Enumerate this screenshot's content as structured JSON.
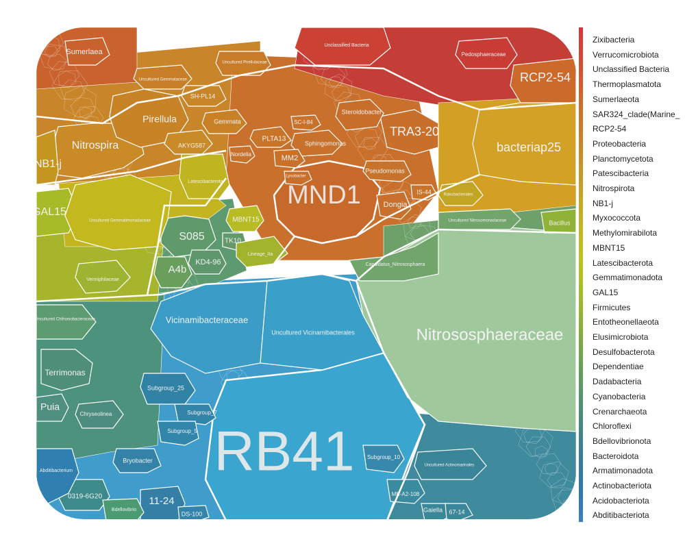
{
  "chart_data": {
    "type": "voronoi-treemap",
    "legend": {
      "placement": "right",
      "items": [
        {
          "name": "Zixibacteria",
          "color": "#d8353a"
        },
        {
          "name": "Verrucomicrobiota",
          "color": "#d63e36"
        },
        {
          "name": "Unclassified Bacteria",
          "color": "#d44a33"
        },
        {
          "name": "Thermoplasmatota",
          "color": "#d2552f"
        },
        {
          "name": "Sumerlaeota",
          "color": "#d0612c"
        },
        {
          "name": "SAR324_clade(Marine_",
          "color": "#ce6c2a"
        },
        {
          "name": "RCP2-54",
          "color": "#cc7628"
        },
        {
          "name": "Proteobacteria",
          "color": "#cb7f27"
        },
        {
          "name": "Planctomycetota",
          "color": "#ca8926"
        },
        {
          "name": "Patescibacteria",
          "color": "#c99326"
        },
        {
          "name": "Nitrospirota",
          "color": "#c89c25"
        },
        {
          "name": "NB1-j",
          "color": "#c7a524"
        },
        {
          "name": "Myxococcota",
          "color": "#c6ad22"
        },
        {
          "name": "Methylomirabilota",
          "color": "#c4b520"
        },
        {
          "name": "MBNT15",
          "color": "#c2bc1f"
        },
        {
          "name": "Latescibacterota",
          "color": "#c0c21e"
        },
        {
          "name": "Gemmatimonadota",
          "color": "#b5c020"
        },
        {
          "name": "GAL15",
          "color": "#a8bc25"
        },
        {
          "name": "Firmicutes",
          "color": "#9bb72c"
        },
        {
          "name": "Entotheonellaeota",
          "color": "#8db235"
        },
        {
          "name": "Elusimicrobiota",
          "color": "#80ac3f"
        },
        {
          "name": "Desulfobacterota",
          "color": "#73a64a"
        },
        {
          "name": "Dependentiae",
          "color": "#67a055"
        },
        {
          "name": "Dadabacteria",
          "color": "#5c9a60"
        },
        {
          "name": "Cyanobacteria",
          "color": "#52946c"
        },
        {
          "name": "Crenarchaeota",
          "color": "#498e78"
        },
        {
          "name": "Chloroflexi",
          "color": "#418884"
        },
        {
          "name": "Bdellovibrionota",
          "color": "#3a8290"
        },
        {
          "name": "Bacteroidota",
          "color": "#347d9b"
        },
        {
          "name": "Armatimonadota",
          "color": "#3079a6"
        },
        {
          "name": "Actinobacteriota",
          "color": "#2f78b2"
        },
        {
          "name": "Acidobacteriota",
          "color": "#2f7abd"
        },
        {
          "name": "Abditibacteriota",
          "color": "#3a82c6"
        }
      ]
    },
    "cells": [
      {
        "label": "RB41",
        "color": "#3aa6cf"
      },
      {
        "label": "Nitrososphaeraceae",
        "color": "#9fc99c"
      },
      {
        "label": "MND1",
        "color": "#c8692c"
      },
      {
        "label": "Vicinamibacteraceae",
        "color": "#3a9cc7"
      },
      {
        "label": "Uncultured Vicinamibacterales",
        "color": "#3a9fc9"
      },
      {
        "label": "bacteriap25",
        "color": "#d3a125"
      },
      {
        "label": "TRA3-20",
        "color": "#c96f2c"
      },
      {
        "label": "RCP2-54",
        "color": "#cc6a2c"
      },
      {
        "label": "Nitrospira",
        "color": "#c98a27"
      },
      {
        "label": "Pirellula",
        "color": "#c98327"
      },
      {
        "label": "S085",
        "color": "#5f9a6b"
      },
      {
        "label": "A4b",
        "color": "#6a9e5c"
      },
      {
        "label": "KD4-96",
        "color": "#5f976c"
      },
      {
        "label": "GAL15",
        "color": "#a7bb28"
      },
      {
        "label": "NB1-j",
        "color": "#c4961f"
      },
      {
        "label": "Terrimonas",
        "color": "#4f8f79"
      },
      {
        "label": "Puia",
        "color": "#4f8f7f"
      },
      {
        "label": "11-24",
        "color": "#357fa6"
      },
      {
        "label": "Sumerlaea",
        "color": "#c9612d"
      },
      {
        "label": "Dongia",
        "color": "#c9712c"
      },
      {
        "label": "Subgroup_25",
        "color": "#3183a6"
      },
      {
        "label": "Subgroup_7",
        "color": "#3285a8"
      },
      {
        "label": "Subgroup_5",
        "color": "#3286aa"
      },
      {
        "label": "Bryobacter",
        "color": "#3482a8"
      },
      {
        "label": "Subgroup_10",
        "color": "#3689ad"
      },
      {
        "label": "Steroidobacter",
        "color": "#c86e2b"
      },
      {
        "label": "Sphingomonas",
        "color": "#c8712b"
      },
      {
        "label": "Pseudomonas",
        "color": "#c8732b"
      },
      {
        "label": "Pedosphaeraceae",
        "color": "#c93b35"
      },
      {
        "label": "Unclassified Bacteria",
        "color": "#cb4234"
      },
      {
        "label": "Gemmata",
        "color": "#c98128"
      },
      {
        "label": "SH-PL14",
        "color": "#c98628"
      },
      {
        "label": "AKYG587",
        "color": "#c98b28"
      },
      {
        "label": "PLTA13",
        "color": "#c87529"
      },
      {
        "label": "MM2",
        "color": "#c87229"
      },
      {
        "label": "MBNT15",
        "color": "#b8bb23"
      },
      {
        "label": "TK10",
        "color": "#62986a"
      },
      {
        "label": "Latescibacterota",
        "color": "#c0b520"
      },
      {
        "label": "Uncultured Gemmatimonadaceae",
        "color": "#c4b81f"
      },
      {
        "label": "Lineage_IIa",
        "color": "#a2b42e"
      },
      {
        "label": "Vermiphilaceae",
        "color": "#9db331"
      },
      {
        "label": "Candidatus_Nitrososphaera",
        "color": "#72a56c"
      },
      {
        "label": "Chryseolinea",
        "color": "#4c8d7f"
      },
      {
        "label": "0319-6G20",
        "color": "#3c8a8a"
      },
      {
        "label": "MB-A2-108",
        "color": "#3a8aa0"
      },
      {
        "label": "Gaiella",
        "color": "#3a8799"
      },
      {
        "label": "67-14",
        "color": "#3a8799"
      },
      {
        "label": "DS-100",
        "color": "#3383aa"
      },
      {
        "label": "Bdellovibrio",
        "color": "#4b9b72"
      },
      {
        "label": "Uncultured Chthoniobacteraceae",
        "color": "#5c9c70"
      },
      {
        "label": "Abditibacterium",
        "color": "#2f7fb0"
      },
      {
        "label": "Uncultured Gemmataceae",
        "color": "#c97f28"
      },
      {
        "label": "Uncultured Pirellulaceae",
        "color": "#c97c28"
      },
      {
        "label": "Rokubacteriales",
        "color": "#c3a525"
      },
      {
        "label": "Bacillus",
        "color": "#8fb239"
      },
      {
        "label": "Uncultured Actinomarinales",
        "color": "#3a8598"
      },
      {
        "label": "Uncultured Nitrosomonadaceae",
        "color": "#72a56c"
      },
      {
        "label": "Nordella",
        "color": "#c8712b"
      },
      {
        "label": "Lysobacter",
        "color": "#c8702b"
      },
      {
        "label": "SC-I-84",
        "color": "#c8722b"
      },
      {
        "label": "IS-44",
        "color": "#c8742b"
      }
    ]
  }
}
